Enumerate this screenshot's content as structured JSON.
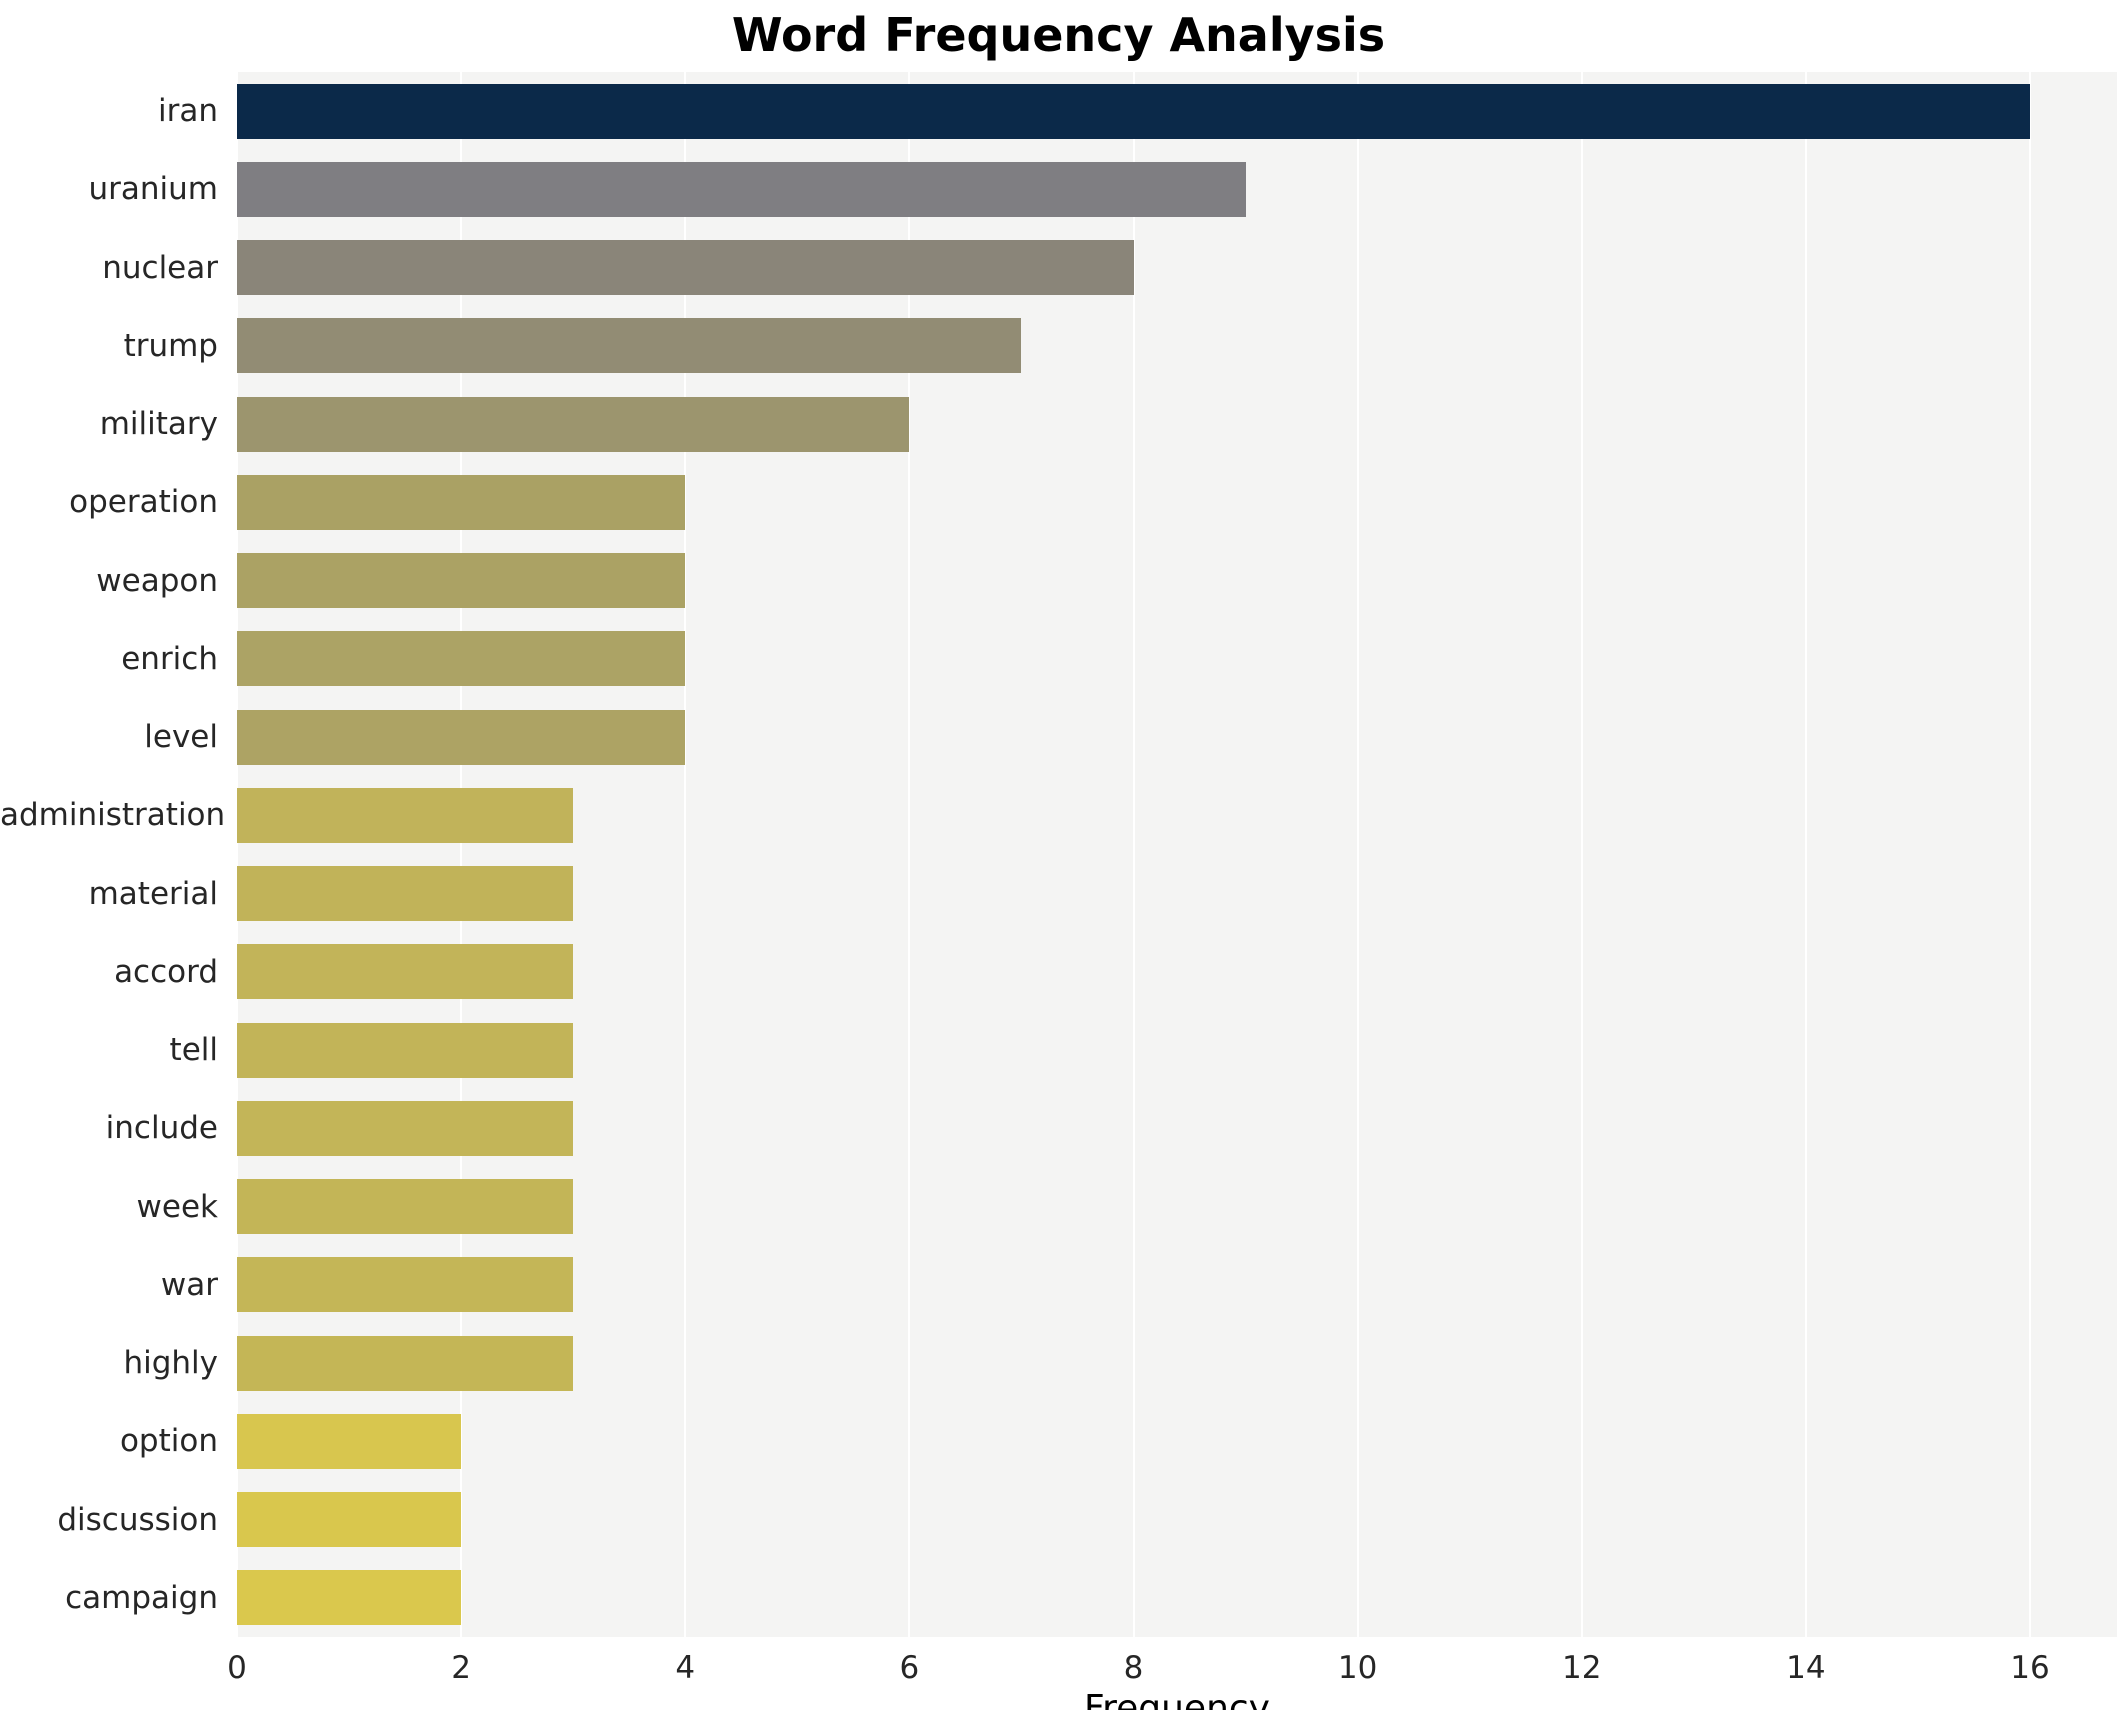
{
  "chart_data": {
    "type": "bar",
    "orientation": "horizontal",
    "title": "Word Frequency Analysis",
    "xlabel": "Frequency",
    "ylabel": "",
    "xlim": [
      0,
      16.8
    ],
    "xticks": [
      0,
      2,
      4,
      6,
      8,
      10,
      12,
      14,
      16
    ],
    "grid": "vertical",
    "legend": "none",
    "plot_bg_color": "#f4f4f3",
    "grid_color": "#ffffff",
    "categories": [
      "iran",
      "uranium",
      "nuclear",
      "trump",
      "military",
      "operation",
      "weapon",
      "enrich",
      "level",
      "administration",
      "material",
      "accord",
      "tell",
      "include",
      "week",
      "war",
      "highly",
      "option",
      "discussion",
      "campaign"
    ],
    "values": [
      16,
      9,
      8,
      7,
      6,
      4,
      4,
      4,
      4,
      3,
      3,
      3,
      3,
      3,
      3,
      3,
      3,
      2,
      2,
      2
    ],
    "bar_colors": [
      "#0b2949",
      "#7f7e82",
      "#8a8579",
      "#928c74",
      "#9c956e",
      "#aaa164",
      "#aba264",
      "#aca365",
      "#ada364",
      "#c1b35a",
      "#c1b359",
      "#c2b459",
      "#c2b458",
      "#c3b558",
      "#c3b557",
      "#c4b657",
      "#c4b656",
      "#d8c64e",
      "#d9c74d",
      "#dac84d"
    ]
  }
}
